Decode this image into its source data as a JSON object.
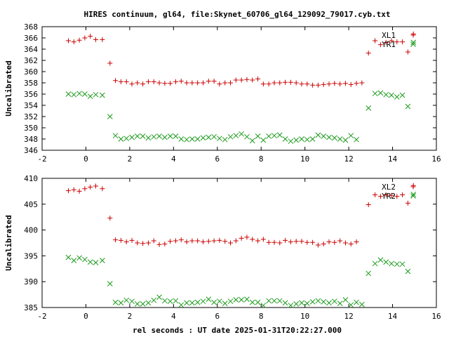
{
  "title": "HIRES continuum, gl64, file:Skynet_60706_gl64_129092_79017.cyb.txt",
  "xlabel": "rel seconds : UT date 2025-01-31T20:22:27.000",
  "colors": {
    "red": "#cc0000",
    "green": "#1a9a1a"
  },
  "chart_data": [
    {
      "type": "scatter",
      "ylabel": "Uncalibrated",
      "xlim": [
        -2,
        16
      ],
      "ylim": [
        346,
        368
      ],
      "xticks": [
        -2,
        0,
        2,
        4,
        6,
        8,
        10,
        12,
        14,
        16
      ],
      "yticks": [
        346,
        348,
        350,
        352,
        354,
        356,
        358,
        360,
        362,
        364,
        366,
        368
      ],
      "legend_position": "top-right",
      "series": [
        {
          "name": "XL1",
          "marker": "plus",
          "color": "#cc0000",
          "points": [
            [
              -0.8,
              365.5
            ],
            [
              -0.55,
              365.3
            ],
            [
              -0.3,
              365.6
            ],
            [
              -0.05,
              366.0
            ],
            [
              0.2,
              366.3
            ],
            [
              0.45,
              365.7
            ],
            [
              0.75,
              365.7
            ],
            [
              1.1,
              361.5
            ],
            [
              1.35,
              358.4
            ],
            [
              1.6,
              358.2
            ],
            [
              1.85,
              358.2
            ],
            [
              2.1,
              357.8
            ],
            [
              2.35,
              358.0
            ],
            [
              2.6,
              357.8
            ],
            [
              2.85,
              358.2
            ],
            [
              3.1,
              358.2
            ],
            [
              3.35,
              358.0
            ],
            [
              3.6,
              357.9
            ],
            [
              3.85,
              357.9
            ],
            [
              4.1,
              358.2
            ],
            [
              4.35,
              358.3
            ],
            [
              4.6,
              358.0
            ],
            [
              4.85,
              358.0
            ],
            [
              5.1,
              358.0
            ],
            [
              5.35,
              358.0
            ],
            [
              5.6,
              358.3
            ],
            [
              5.85,
              358.3
            ],
            [
              6.1,
              357.8
            ],
            [
              6.35,
              358.0
            ],
            [
              6.6,
              358.0
            ],
            [
              6.85,
              358.5
            ],
            [
              7.1,
              358.5
            ],
            [
              7.35,
              358.6
            ],
            [
              7.6,
              358.5
            ],
            [
              7.85,
              358.7
            ],
            [
              8.1,
              357.8
            ],
            [
              8.35,
              357.8
            ],
            [
              8.6,
              358.0
            ],
            [
              8.85,
              358.0
            ],
            [
              9.1,
              358.1
            ],
            [
              9.35,
              358.1
            ],
            [
              9.6,
              358.0
            ],
            [
              9.85,
              357.8
            ],
            [
              10.1,
              357.8
            ],
            [
              10.35,
              357.6
            ],
            [
              10.6,
              357.6
            ],
            [
              10.85,
              357.7
            ],
            [
              11.1,
              357.8
            ],
            [
              11.35,
              357.9
            ],
            [
              11.6,
              357.8
            ],
            [
              11.85,
              357.9
            ],
            [
              12.1,
              357.7
            ],
            [
              12.35,
              357.9
            ],
            [
              12.6,
              358.0
            ],
            [
              12.9,
              363.3
            ],
            [
              13.2,
              365.5
            ],
            [
              13.45,
              364.8
            ],
            [
              13.7,
              365.2
            ],
            [
              13.95,
              365.5
            ],
            [
              14.2,
              365.3
            ],
            [
              14.45,
              365.3
            ],
            [
              14.7,
              363.5
            ],
            [
              14.95,
              366.7
            ]
          ]
        },
        {
          "name": "YR1",
          "marker": "cross",
          "color": "#1a9a1a",
          "points": [
            [
              -0.8,
              356.0
            ],
            [
              -0.55,
              355.9
            ],
            [
              -0.3,
              356.1
            ],
            [
              -0.05,
              356.0
            ],
            [
              0.2,
              355.6
            ],
            [
              0.45,
              355.9
            ],
            [
              0.75,
              355.8
            ],
            [
              1.1,
              352.0
            ],
            [
              1.35,
              348.6
            ],
            [
              1.6,
              348.0
            ],
            [
              1.85,
              348.1
            ],
            [
              2.1,
              348.3
            ],
            [
              2.35,
              348.5
            ],
            [
              2.6,
              348.5
            ],
            [
              2.85,
              348.2
            ],
            [
              3.1,
              348.4
            ],
            [
              3.35,
              348.5
            ],
            [
              3.6,
              348.3
            ],
            [
              3.85,
              348.5
            ],
            [
              4.1,
              348.5
            ],
            [
              4.35,
              348.0
            ],
            [
              4.6,
              347.9
            ],
            [
              4.85,
              348.0
            ],
            [
              5.1,
              348.0
            ],
            [
              5.35,
              348.2
            ],
            [
              5.6,
              348.3
            ],
            [
              5.85,
              348.4
            ],
            [
              6.1,
              348.1
            ],
            [
              6.35,
              347.9
            ],
            [
              6.6,
              348.4
            ],
            [
              6.85,
              348.6
            ],
            [
              7.1,
              348.9
            ],
            [
              7.35,
              348.4
            ],
            [
              7.6,
              347.7
            ],
            [
              7.85,
              348.5
            ],
            [
              8.1,
              347.8
            ],
            [
              8.35,
              348.5
            ],
            [
              8.6,
              348.6
            ],
            [
              8.85,
              348.7
            ],
            [
              9.1,
              348.0
            ],
            [
              9.35,
              347.6
            ],
            [
              9.6,
              347.8
            ],
            [
              9.85,
              348.0
            ],
            [
              10.1,
              347.9
            ],
            [
              10.35,
              348.0
            ],
            [
              10.6,
              348.7
            ],
            [
              10.85,
              348.5
            ],
            [
              11.1,
              348.3
            ],
            [
              11.35,
              348.2
            ],
            [
              11.6,
              348.0
            ],
            [
              11.85,
              347.8
            ],
            [
              12.1,
              348.6
            ],
            [
              12.35,
              347.9
            ],
            [
              12.9,
              353.5
            ],
            [
              13.2,
              356.1
            ],
            [
              13.45,
              356.2
            ],
            [
              13.7,
              355.9
            ],
            [
              13.95,
              355.8
            ],
            [
              14.2,
              355.5
            ],
            [
              14.45,
              355.8
            ],
            [
              14.7,
              353.8
            ],
            [
              14.95,
              365.2
            ]
          ]
        }
      ]
    },
    {
      "type": "scatter",
      "ylabel": "Uncalibrated",
      "xlim": [
        -2,
        16
      ],
      "ylim": [
        385,
        410
      ],
      "xticks": [
        -2,
        0,
        2,
        4,
        6,
        8,
        10,
        12,
        14,
        16
      ],
      "yticks": [
        385,
        390,
        395,
        400,
        405,
        410
      ],
      "legend_position": "top-right",
      "series": [
        {
          "name": "XL2",
          "marker": "plus",
          "color": "#cc0000",
          "points": [
            [
              -0.8,
              407.6
            ],
            [
              -0.55,
              407.8
            ],
            [
              -0.3,
              407.5
            ],
            [
              -0.05,
              408.0
            ],
            [
              0.2,
              408.3
            ],
            [
              0.45,
              408.5
            ],
            [
              0.75,
              408.0
            ],
            [
              1.1,
              402.3
            ],
            [
              1.35,
              398.1
            ],
            [
              1.6,
              398.0
            ],
            [
              1.85,
              397.7
            ],
            [
              2.1,
              398.0
            ],
            [
              2.35,
              397.5
            ],
            [
              2.6,
              397.4
            ],
            [
              2.85,
              397.5
            ],
            [
              3.1,
              397.9
            ],
            [
              3.35,
              397.2
            ],
            [
              3.6,
              397.3
            ],
            [
              3.85,
              397.8
            ],
            [
              4.1,
              397.9
            ],
            [
              4.35,
              398.1
            ],
            [
              4.6,
              397.7
            ],
            [
              4.85,
              397.9
            ],
            [
              5.1,
              397.9
            ],
            [
              5.35,
              397.7
            ],
            [
              5.6,
              397.8
            ],
            [
              5.85,
              397.9
            ],
            [
              6.1,
              398.0
            ],
            [
              6.35,
              397.8
            ],
            [
              6.6,
              397.5
            ],
            [
              6.85,
              397.9
            ],
            [
              7.1,
              398.4
            ],
            [
              7.35,
              398.6
            ],
            [
              7.6,
              398.2
            ],
            [
              7.85,
              397.9
            ],
            [
              8.1,
              398.2
            ],
            [
              8.35,
              397.6
            ],
            [
              8.6,
              397.6
            ],
            [
              8.85,
              397.5
            ],
            [
              9.1,
              398.0
            ],
            [
              9.35,
              397.7
            ],
            [
              9.6,
              397.8
            ],
            [
              9.85,
              397.8
            ],
            [
              10.1,
              397.6
            ],
            [
              10.35,
              397.6
            ],
            [
              10.6,
              397.1
            ],
            [
              10.85,
              397.3
            ],
            [
              11.1,
              397.7
            ],
            [
              11.35,
              397.6
            ],
            [
              11.6,
              397.9
            ],
            [
              11.85,
              397.5
            ],
            [
              12.1,
              397.3
            ],
            [
              12.35,
              397.7
            ],
            [
              12.9,
              404.9
            ],
            [
              13.2,
              406.8
            ],
            [
              13.45,
              406.5
            ],
            [
              13.7,
              406.8
            ],
            [
              13.95,
              406.7
            ],
            [
              14.2,
              406.5
            ],
            [
              14.45,
              406.8
            ],
            [
              14.7,
              405.2
            ],
            [
              14.95,
              408.6
            ]
          ]
        },
        {
          "name": "YR2",
          "marker": "cross",
          "color": "#1a9a1a",
          "points": [
            [
              -0.8,
              394.7
            ],
            [
              -0.55,
              394.1
            ],
            [
              -0.3,
              394.6
            ],
            [
              -0.05,
              394.3
            ],
            [
              0.2,
              393.8
            ],
            [
              0.45,
              393.7
            ],
            [
              0.75,
              394.1
            ],
            [
              1.1,
              389.6
            ],
            [
              1.35,
              386.0
            ],
            [
              1.6,
              385.9
            ],
            [
              1.85,
              386.4
            ],
            [
              2.1,
              386.2
            ],
            [
              2.35,
              385.7
            ],
            [
              2.6,
              385.7
            ],
            [
              2.85,
              385.9
            ],
            [
              3.1,
              386.4
            ],
            [
              3.35,
              387.0
            ],
            [
              3.6,
              386.3
            ],
            [
              3.85,
              386.2
            ],
            [
              4.1,
              386.3
            ],
            [
              4.35,
              385.5
            ],
            [
              4.6,
              385.9
            ],
            [
              4.85,
              385.9
            ],
            [
              5.1,
              386.0
            ],
            [
              5.35,
              386.2
            ],
            [
              5.6,
              386.6
            ],
            [
              5.85,
              386.0
            ],
            [
              6.1,
              386.2
            ],
            [
              6.35,
              385.8
            ],
            [
              6.6,
              386.2
            ],
            [
              6.85,
              386.5
            ],
            [
              7.1,
              386.5
            ],
            [
              7.35,
              386.6
            ],
            [
              7.6,
              386.0
            ],
            [
              7.85,
              386.0
            ],
            [
              8.1,
              385.4
            ],
            [
              8.35,
              386.3
            ],
            [
              8.6,
              386.3
            ],
            [
              8.85,
              386.3
            ],
            [
              9.1,
              385.9
            ],
            [
              9.35,
              385.4
            ],
            [
              9.6,
              385.7
            ],
            [
              9.85,
              385.9
            ],
            [
              10.1,
              385.8
            ],
            [
              10.35,
              386.1
            ],
            [
              10.6,
              386.3
            ],
            [
              10.85,
              386.1
            ],
            [
              11.1,
              385.9
            ],
            [
              11.35,
              386.2
            ],
            [
              11.6,
              385.8
            ],
            [
              11.85,
              386.5
            ],
            [
              12.1,
              385.5
            ],
            [
              12.35,
              386.0
            ],
            [
              12.6,
              385.6
            ],
            [
              12.9,
              391.6
            ],
            [
              13.2,
              393.5
            ],
            [
              13.45,
              394.2
            ],
            [
              13.7,
              393.8
            ],
            [
              13.95,
              393.5
            ],
            [
              14.2,
              393.4
            ],
            [
              14.45,
              393.4
            ],
            [
              14.7,
              392.0
            ],
            [
              14.95,
              406.9
            ]
          ]
        }
      ]
    }
  ]
}
